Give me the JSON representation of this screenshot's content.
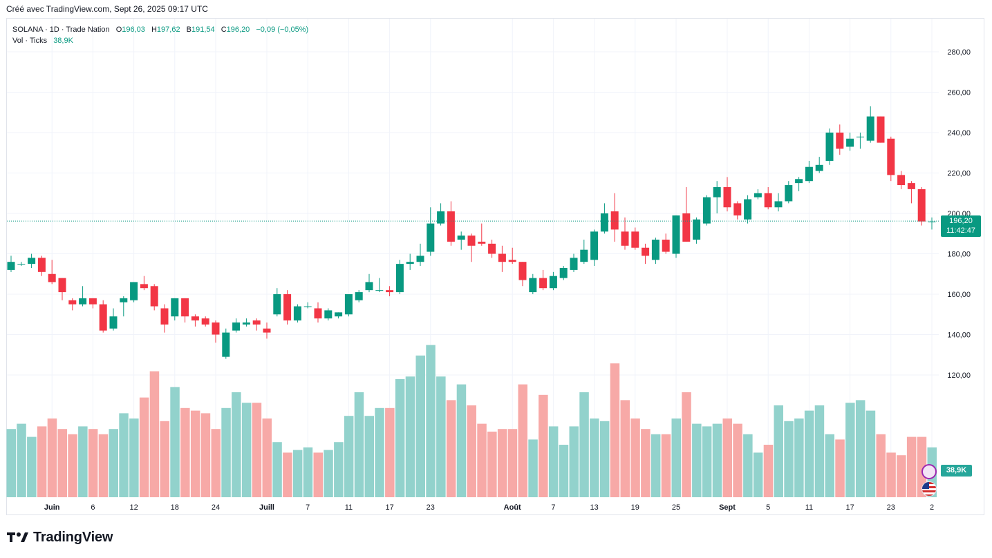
{
  "credit": "Créé avec TradingView.com, Sept 26, 2025 09:17 UTC",
  "legend": {
    "symbol": "SOLANA · 1D · Trade Nation",
    "o_label": "O",
    "o_value": "196,03",
    "h_label": "H",
    "h_value": "197,62",
    "b_label": "B",
    "b_value": "191,54",
    "c_label": "C",
    "c_value": "196,20",
    "change": "−0,09 (−0,05%)",
    "vol_label": "Vol · Ticks",
    "vol_value": "38,9K"
  },
  "price_tag": {
    "price": "196,20",
    "countdown": "11:42:47"
  },
  "vol_tag": "38,9K",
  "logo_text": "TradingView",
  "icons": {
    "bolt": "bolt-icon",
    "flag": "us-flag-icon",
    "logo": "tradingview-logo-icon"
  },
  "colors": {
    "up": "#089981",
    "down": "#f23645",
    "vol_up": "#92d2cc",
    "vol_down": "#f7a9a7",
    "grid": "#f0f3fa"
  },
  "chart_data": {
    "type": "candlestick",
    "y_range": [
      120,
      290
    ],
    "y_ticks": [
      120,
      140,
      160,
      180,
      200,
      220,
      240,
      260,
      280
    ],
    "y_tick_labels": [
      "120,00",
      "140,00",
      "160,00",
      "180,00",
      "200,00",
      "220,00",
      "240,00",
      "260,00",
      "280,00"
    ],
    "x_ticks": [
      {
        "i": 4,
        "label": "Juin"
      },
      {
        "i": 8,
        "label": "6"
      },
      {
        "i": 12,
        "label": "12"
      },
      {
        "i": 16,
        "label": "18"
      },
      {
        "i": 20,
        "label": "24"
      },
      {
        "i": 25,
        "label": "Juill"
      },
      {
        "i": 29,
        "label": "7"
      },
      {
        "i": 33,
        "label": "11"
      },
      {
        "i": 37,
        "label": "17"
      },
      {
        "i": 41,
        "label": "23"
      },
      {
        "i": 49,
        "label": "Août"
      },
      {
        "i": 53,
        "label": "7"
      },
      {
        "i": 57,
        "label": "13"
      },
      {
        "i": 61,
        "label": "19"
      },
      {
        "i": 65,
        "label": "25"
      },
      {
        "i": 70,
        "label": "Sept"
      },
      {
        "i": 74,
        "label": "5"
      },
      {
        "i": 78,
        "label": "11"
      },
      {
        "i": 82,
        "label": "17"
      },
      {
        "i": 86,
        "label": "23"
      },
      {
        "i": 90,
        "label": "2"
      }
    ],
    "last_price": 196.2,
    "candles": [
      {
        "o": 172,
        "h": 179,
        "l": 171,
        "c": 176
      },
      {
        "o": 175,
        "h": 176,
        "l": 174,
        "c": 175
      },
      {
        "o": 175,
        "h": 180,
        "l": 173,
        "c": 178
      },
      {
        "o": 178,
        "h": 179,
        "l": 169,
        "c": 171
      },
      {
        "o": 170,
        "h": 177,
        "l": 165,
        "c": 166
      },
      {
        "o": 168,
        "h": 168,
        "l": 157,
        "c": 161
      },
      {
        "o": 157,
        "h": 158,
        "l": 152,
        "c": 155
      },
      {
        "o": 155,
        "h": 164,
        "l": 154,
        "c": 158
      },
      {
        "o": 158,
        "h": 158,
        "l": 153,
        "c": 155
      },
      {
        "o": 155,
        "h": 157,
        "l": 141,
        "c": 142
      },
      {
        "o": 143,
        "h": 153,
        "l": 142,
        "c": 149
      },
      {
        "o": 156,
        "h": 159,
        "l": 149,
        "c": 158
      },
      {
        "o": 157,
        "h": 166,
        "l": 156,
        "c": 166
      },
      {
        "o": 165,
        "h": 169,
        "l": 162,
        "c": 163
      },
      {
        "o": 164,
        "h": 165,
        "l": 152,
        "c": 154
      },
      {
        "o": 153,
        "h": 155,
        "l": 141,
        "c": 145
      },
      {
        "o": 149,
        "h": 158,
        "l": 147,
        "c": 158
      },
      {
        "o": 158,
        "h": 158,
        "l": 146,
        "c": 149
      },
      {
        "o": 149,
        "h": 150,
        "l": 144,
        "c": 147
      },
      {
        "o": 148,
        "h": 149,
        "l": 144,
        "c": 145
      },
      {
        "o": 146,
        "h": 147,
        "l": 136,
        "c": 140
      },
      {
        "o": 129,
        "h": 143,
        "l": 128,
        "c": 141
      },
      {
        "o": 142,
        "h": 148,
        "l": 141,
        "c": 146
      },
      {
        "o": 145,
        "h": 148,
        "l": 144,
        "c": 146
      },
      {
        "o": 147,
        "h": 148,
        "l": 142,
        "c": 145
      },
      {
        "o": 143,
        "h": 146,
        "l": 138,
        "c": 141
      },
      {
        "o": 150,
        "h": 163,
        "l": 149,
        "c": 160
      },
      {
        "o": 160,
        "h": 162,
        "l": 145,
        "c": 147
      },
      {
        "o": 147,
        "h": 155,
        "l": 146,
        "c": 154
      },
      {
        "o": 154,
        "h": 156,
        "l": 153,
        "c": 154
      },
      {
        "o": 153,
        "h": 156,
        "l": 146,
        "c": 148
      },
      {
        "o": 148,
        "h": 153,
        "l": 147,
        "c": 152
      },
      {
        "o": 149,
        "h": 151,
        "l": 148,
        "c": 151
      },
      {
        "o": 150,
        "h": 160,
        "l": 149,
        "c": 160
      },
      {
        "o": 157,
        "h": 162,
        "l": 156,
        "c": 161
      },
      {
        "o": 162,
        "h": 170,
        "l": 161,
        "c": 166
      },
      {
        "o": 162,
        "h": 168,
        "l": 161,
        "c": 162
      },
      {
        "o": 162,
        "h": 164,
        "l": 159,
        "c": 161
      },
      {
        "o": 161,
        "h": 177,
        "l": 160,
        "c": 175
      },
      {
        "o": 175,
        "h": 180,
        "l": 172,
        "c": 176
      },
      {
        "o": 176,
        "h": 185,
        "l": 174,
        "c": 179
      },
      {
        "o": 181,
        "h": 203,
        "l": 179,
        "c": 195
      },
      {
        "o": 195,
        "h": 205,
        "l": 194,
        "c": 201
      },
      {
        "o": 201,
        "h": 206,
        "l": 184,
        "c": 186
      },
      {
        "o": 187,
        "h": 191,
        "l": 182,
        "c": 189
      },
      {
        "o": 189,
        "h": 190,
        "l": 176,
        "c": 184
      },
      {
        "o": 186,
        "h": 195,
        "l": 184,
        "c": 185
      },
      {
        "o": 185,
        "h": 187,
        "l": 178,
        "c": 180
      },
      {
        "o": 180,
        "h": 184,
        "l": 171,
        "c": 176
      },
      {
        "o": 177,
        "h": 183,
        "l": 175,
        "c": 176
      },
      {
        "o": 176,
        "h": 176,
        "l": 164,
        "c": 167
      },
      {
        "o": 161,
        "h": 170,
        "l": 160,
        "c": 168
      },
      {
        "o": 168,
        "h": 172,
        "l": 162,
        "c": 163
      },
      {
        "o": 163,
        "h": 171,
        "l": 162,
        "c": 169
      },
      {
        "o": 168,
        "h": 174,
        "l": 167,
        "c": 173
      },
      {
        "o": 172,
        "h": 180,
        "l": 171,
        "c": 178
      },
      {
        "o": 176,
        "h": 187,
        "l": 175,
        "c": 182
      },
      {
        "o": 177,
        "h": 192,
        "l": 174,
        "c": 191
      },
      {
        "o": 191,
        "h": 205,
        "l": 190,
        "c": 200
      },
      {
        "o": 201,
        "h": 210,
        "l": 186,
        "c": 192
      },
      {
        "o": 191,
        "h": 198,
        "l": 182,
        "c": 184
      },
      {
        "o": 191,
        "h": 193,
        "l": 182,
        "c": 183
      },
      {
        "o": 183,
        "h": 185,
        "l": 175,
        "c": 179
      },
      {
        "o": 177,
        "h": 188,
        "l": 175,
        "c": 187
      },
      {
        "o": 187,
        "h": 190,
        "l": 180,
        "c": 181
      },
      {
        "o": 180,
        "h": 199,
        "l": 178,
        "c": 199
      },
      {
        "o": 200,
        "h": 213,
        "l": 186,
        "c": 186
      },
      {
        "o": 187,
        "h": 198,
        "l": 185,
        "c": 197
      },
      {
        "o": 195,
        "h": 209,
        "l": 194,
        "c": 208
      },
      {
        "o": 208,
        "h": 216,
        "l": 200,
        "c": 213
      },
      {
        "o": 213,
        "h": 218,
        "l": 201,
        "c": 203
      },
      {
        "o": 205,
        "h": 206,
        "l": 197,
        "c": 199
      },
      {
        "o": 197,
        "h": 209,
        "l": 195,
        "c": 207
      },
      {
        "o": 208,
        "h": 212,
        "l": 207,
        "c": 210
      },
      {
        "o": 210,
        "h": 213,
        "l": 202,
        "c": 203
      },
      {
        "o": 203,
        "h": 210,
        "l": 201,
        "c": 206
      },
      {
        "o": 206,
        "h": 216,
        "l": 205,
        "c": 214
      },
      {
        "o": 215,
        "h": 218,
        "l": 211,
        "c": 217
      },
      {
        "o": 216,
        "h": 226,
        "l": 215,
        "c": 223
      },
      {
        "o": 221,
        "h": 228,
        "l": 220,
        "c": 224
      },
      {
        "o": 226,
        "h": 242,
        "l": 224,
        "c": 240
      },
      {
        "o": 240,
        "h": 244,
        "l": 229,
        "c": 232
      },
      {
        "o": 233,
        "h": 240,
        "l": 231,
        "c": 237
      },
      {
        "o": 238,
        "h": 240,
        "l": 232,
        "c": 238
      },
      {
        "o": 236,
        "h": 253,
        "l": 235,
        "c": 248
      },
      {
        "o": 248,
        "h": 248,
        "l": 235,
        "c": 235
      },
      {
        "o": 237,
        "h": 238,
        "l": 216,
        "c": 219
      },
      {
        "o": 219,
        "h": 221,
        "l": 212,
        "c": 214
      },
      {
        "o": 215,
        "h": 216,
        "l": 205,
        "c": 212
      },
      {
        "o": 212,
        "h": 213,
        "l": 194,
        "c": 196
      },
      {
        "o": 196,
        "h": 198,
        "l": 192,
        "c": 196
      }
    ],
    "volume": {
      "values": [
        86,
        88,
        83,
        87,
        90,
        86,
        84,
        87,
        86,
        84,
        86,
        92,
        90,
        98,
        108,
        89,
        102,
        94,
        93,
        92,
        86,
        94,
        100,
        96,
        96,
        90,
        81,
        77,
        78,
        79,
        77,
        78,
        81,
        91,
        100,
        91,
        94,
        94,
        105,
        106,
        114,
        118,
        106,
        97,
        103,
        95,
        88,
        85,
        86,
        86,
        103,
        82,
        99,
        87,
        80,
        87,
        100,
        90,
        89,
        111,
        97,
        90,
        86,
        84,
        84,
        90,
        100,
        88,
        87,
        88,
        90,
        88,
        84,
        77,
        80,
        95,
        89,
        90,
        93,
        95,
        84,
        82,
        96,
        97,
        93,
        84,
        77,
        76,
        83,
        83,
        79
      ],
      "last_value": "38,9K"
    }
  }
}
